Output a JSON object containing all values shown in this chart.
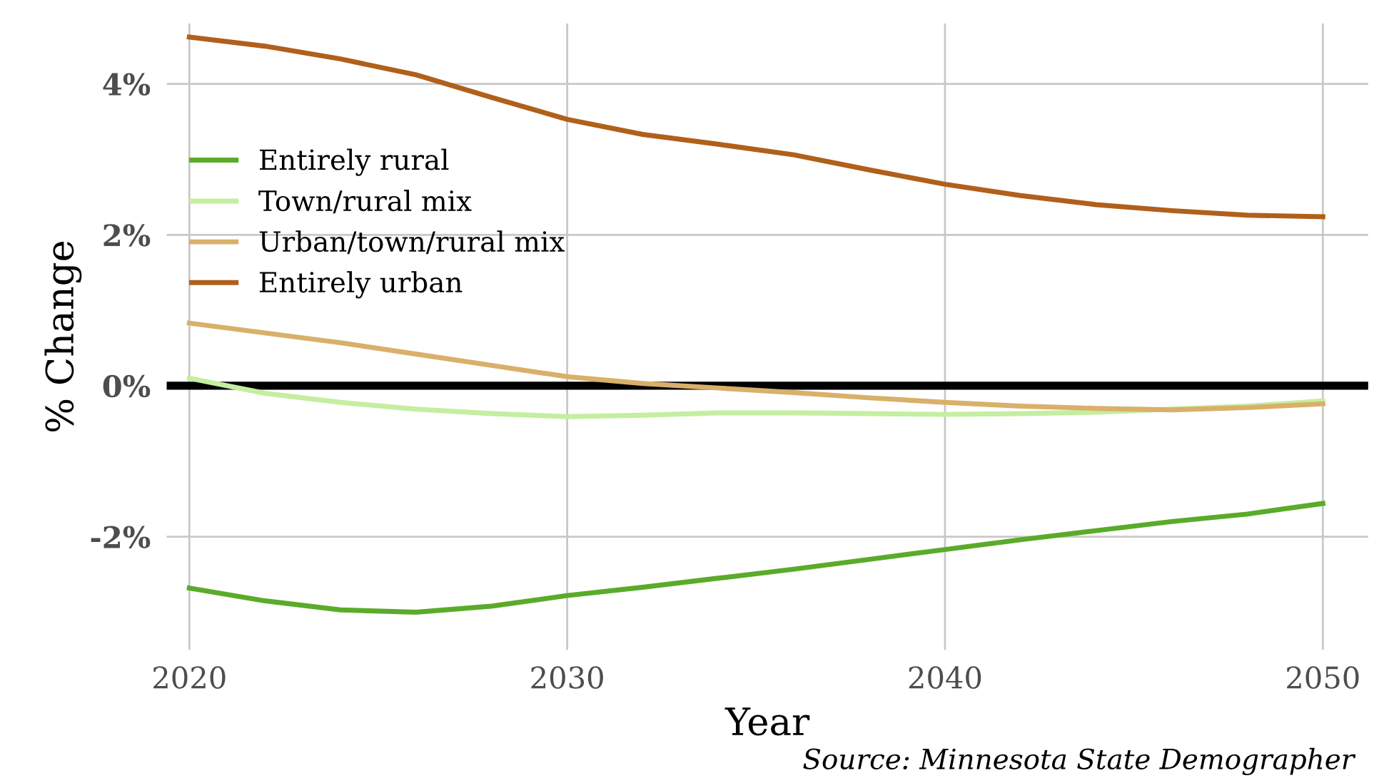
{
  "chart_data": {
    "type": "line",
    "xlabel": "Year",
    "ylabel": "% Change",
    "annotations": [
      "Source: Minnesota State Demographer"
    ],
    "x": [
      2020,
      2022,
      2024,
      2026,
      2028,
      2030,
      2032,
      2034,
      2036,
      2038,
      2040,
      2042,
      2044,
      2046,
      2048,
      2050
    ],
    "series": [
      {
        "name": "Entirely rural",
        "color": "#5aab2a",
        "values": [
          -2.68,
          -2.85,
          -2.97,
          -3.0,
          -2.92,
          -2.78,
          -2.67,
          -2.55,
          -2.43,
          -2.3,
          -2.17,
          -2.04,
          -1.92,
          -1.8,
          -1.7,
          -1.56
        ]
      },
      {
        "name": "Town/rural mix",
        "color": "#c4eea0",
        "values": [
          0.1,
          -0.1,
          -0.22,
          -0.31,
          -0.37,
          -0.41,
          -0.39,
          -0.36,
          -0.36,
          -0.37,
          -0.38,
          -0.37,
          -0.35,
          -0.31,
          -0.27,
          -0.2
        ]
      },
      {
        "name": "Urban/town/rural mix",
        "color": "#d9b06a",
        "values": [
          0.83,
          0.7,
          0.57,
          0.42,
          0.27,
          0.12,
          0.03,
          -0.03,
          -0.09,
          -0.16,
          -0.22,
          -0.27,
          -0.3,
          -0.32,
          -0.29,
          -0.24
        ]
      },
      {
        "name": "Entirely urban",
        "color": "#b0601a",
        "values": [
          4.62,
          4.5,
          4.33,
          4.12,
          3.82,
          3.53,
          3.33,
          3.2,
          3.06,
          2.86,
          2.67,
          2.52,
          2.4,
          2.32,
          2.26,
          2.24
        ]
      }
    ],
    "xlim": [
      2019.4,
      2051.2
    ],
    "xticks": [
      2020,
      2030,
      2040,
      2050
    ],
    "ylim": [
      -3.5,
      4.8
    ],
    "yticks": [
      {
        "value": -2,
        "label": "-2%"
      },
      {
        "value": 0,
        "label": "0%"
      },
      {
        "value": 2,
        "label": "2%"
      },
      {
        "value": 4,
        "label": "4%"
      }
    ],
    "ref_lines": [
      {
        "axis": "y",
        "value": 0,
        "color": "#000000"
      }
    ],
    "grid": true,
    "legend": "top left",
    "marker": "none",
    "line_style": "solid"
  }
}
